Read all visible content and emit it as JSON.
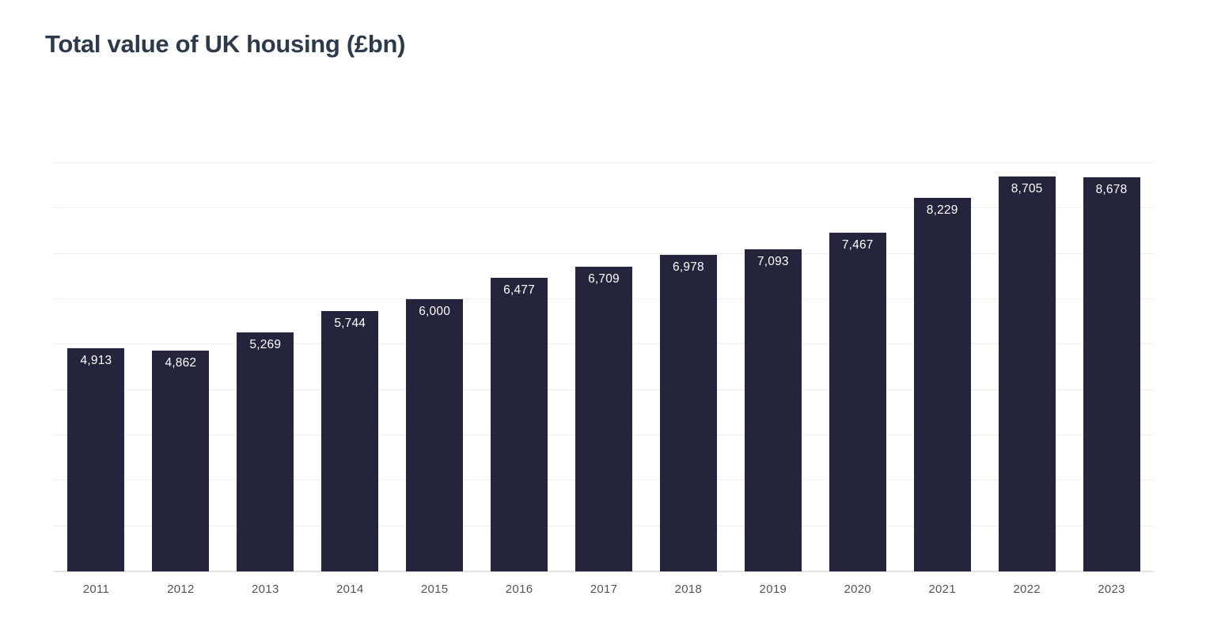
{
  "title": "Total value of UK housing (£bn)",
  "chart_data": {
    "type": "bar",
    "title": "Total value of UK housing (£bn)",
    "categories": [
      "2011",
      "2012",
      "2013",
      "2014",
      "2015",
      "2016",
      "2017",
      "2018",
      "2019",
      "2020",
      "2021",
      "2022",
      "2023"
    ],
    "values": [
      4913,
      4862,
      5269,
      5744,
      6000,
      6477,
      6709,
      6978,
      7093,
      7467,
      8229,
      8705,
      8678
    ],
    "value_labels": [
      "4,913",
      "4,862",
      "5,269",
      "5,744",
      "6,000",
      "6,477",
      "6,709",
      "6,978",
      "7,093",
      "7,467",
      "8,229",
      "8,705",
      "8,678"
    ],
    "xlabel": "",
    "ylabel": "",
    "ylim": [
      0,
      9000
    ],
    "gridline_interval": 1000,
    "grid": "horizontal",
    "legend_position": "none",
    "value_label_position": "inside-top"
  },
  "colors": {
    "background": "#ffffff",
    "bar": "#24243c",
    "bar_label": "#ffffff",
    "title": "#2d3a49",
    "axis_label": "#54545e",
    "gridline": "#ededed",
    "baseline": "#e4e4e6"
  }
}
